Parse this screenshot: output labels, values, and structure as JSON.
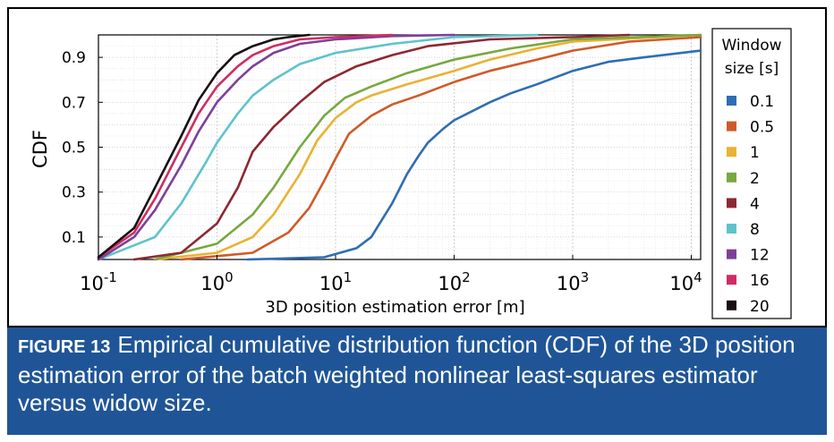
{
  "chart_data": {
    "type": "line",
    "xscale": "log",
    "xlim": [
      0.1,
      12000
    ],
    "ylim": [
      0,
      1
    ],
    "xlabel": "3D position estimation error [m]",
    "ylabel": "CDF",
    "grid": true,
    "legend_position": "right",
    "legend_title": [
      "Window",
      "size [s]"
    ],
    "x_ticks": [
      {
        "value": 0.1,
        "base": "10",
        "exp": "-1"
      },
      {
        "value": 1,
        "base": "10",
        "exp": "0"
      },
      {
        "value": 10,
        "base": "10",
        "exp": "1"
      },
      {
        "value": 100,
        "base": "10",
        "exp": "2"
      },
      {
        "value": 1000,
        "base": "10",
        "exp": "3"
      },
      {
        "value": 10000,
        "base": "10",
        "exp": "4"
      }
    ],
    "y_ticks": [
      {
        "value": 0.1,
        "label": "0.1"
      },
      {
        "value": 0.3,
        "label": "0.3"
      },
      {
        "value": 0.5,
        "label": "0.5"
      },
      {
        "value": 0.7,
        "label": "0.7"
      },
      {
        "value": 0.9,
        "label": "0.9"
      }
    ],
    "series": [
      {
        "name": "0.1",
        "color": "#2e6db5",
        "x": [
          1.8,
          8,
          15,
          20,
          30,
          40,
          50,
          60,
          80,
          100,
          130,
          200,
          300,
          500,
          1000,
          2000,
          4000,
          12000
        ],
        "y": [
          0.0,
          0.01,
          0.05,
          0.1,
          0.25,
          0.38,
          0.46,
          0.52,
          0.58,
          0.62,
          0.65,
          0.7,
          0.74,
          0.78,
          0.84,
          0.88,
          0.9,
          0.93
        ]
      },
      {
        "name": "0.5",
        "color": "#d05a27",
        "x": [
          0.5,
          2,
          4,
          6,
          8,
          10,
          13,
          20,
          30,
          50,
          100,
          200,
          500,
          1000,
          3000,
          12000
        ],
        "y": [
          0.0,
          0.03,
          0.12,
          0.23,
          0.35,
          0.45,
          0.56,
          0.64,
          0.69,
          0.73,
          0.79,
          0.84,
          0.89,
          0.93,
          0.97,
          0.99
        ]
      },
      {
        "name": "1",
        "color": "#e9b232",
        "x": [
          0.3,
          1,
          2,
          3,
          5,
          7,
          10,
          15,
          20,
          40,
          100,
          200,
          500,
          1000,
          12000
        ],
        "y": [
          0.0,
          0.03,
          0.1,
          0.2,
          0.38,
          0.53,
          0.63,
          0.7,
          0.73,
          0.78,
          0.84,
          0.89,
          0.94,
          0.97,
          1.0
        ]
      },
      {
        "name": "2",
        "color": "#78a83e",
        "x": [
          0.3,
          1,
          2,
          3,
          5,
          8,
          12,
          20,
          40,
          100,
          300,
          1000,
          12000
        ],
        "y": [
          0.0,
          0.07,
          0.2,
          0.32,
          0.5,
          0.64,
          0.72,
          0.77,
          0.83,
          0.89,
          0.94,
          0.98,
          1.0
        ]
      },
      {
        "name": "4",
        "color": "#8e2733",
        "x": [
          0.2,
          0.5,
          1,
          1.5,
          2,
          3,
          5,
          8,
          15,
          30,
          60,
          200,
          1000,
          3000
        ],
        "y": [
          0.0,
          0.03,
          0.16,
          0.32,
          0.48,
          0.59,
          0.7,
          0.79,
          0.86,
          0.91,
          0.95,
          0.98,
          0.99,
          1.0
        ]
      },
      {
        "name": "8",
        "color": "#5ec3cb",
        "x": [
          0.1,
          0.3,
          0.5,
          0.8,
          1,
          1.5,
          2,
          3,
          5,
          10,
          30,
          100,
          500
        ],
        "y": [
          0.0,
          0.1,
          0.25,
          0.43,
          0.52,
          0.65,
          0.73,
          0.8,
          0.87,
          0.92,
          0.96,
          0.99,
          1.0
        ]
      },
      {
        "name": "12",
        "color": "#7f3f98",
        "x": [
          0.1,
          0.2,
          0.3,
          0.5,
          0.7,
          1,
          1.5,
          2,
          3,
          5,
          10,
          30,
          100
        ],
        "y": [
          0.0,
          0.1,
          0.22,
          0.42,
          0.57,
          0.7,
          0.8,
          0.86,
          0.92,
          0.96,
          0.98,
          0.995,
          1.0
        ]
      },
      {
        "name": "16",
        "color": "#d02c62",
        "x": [
          0.1,
          0.2,
          0.3,
          0.5,
          0.7,
          1,
          1.5,
          2,
          3,
          5,
          10,
          30
        ],
        "y": [
          0.01,
          0.12,
          0.27,
          0.5,
          0.65,
          0.77,
          0.86,
          0.91,
          0.95,
          0.98,
          0.99,
          1.0
        ]
      },
      {
        "name": "20",
        "color": "#1a0f0f",
        "x": [
          0.1,
          0.2,
          0.3,
          0.5,
          0.7,
          1,
          1.4,
          2,
          3,
          4,
          6
        ],
        "y": [
          0.01,
          0.14,
          0.32,
          0.55,
          0.71,
          0.83,
          0.91,
          0.95,
          0.98,
          0.99,
          1.0
        ]
      }
    ]
  },
  "caption": {
    "label": "FIGURE 13",
    "text": "Empirical cumulative distribution function (CDF) of the 3D position estimation error of the batch weighted nonlinear least-squares estimator versus widow size."
  },
  "colors": {
    "caption_background": "#1f5596",
    "caption_text": "#ffffff"
  }
}
